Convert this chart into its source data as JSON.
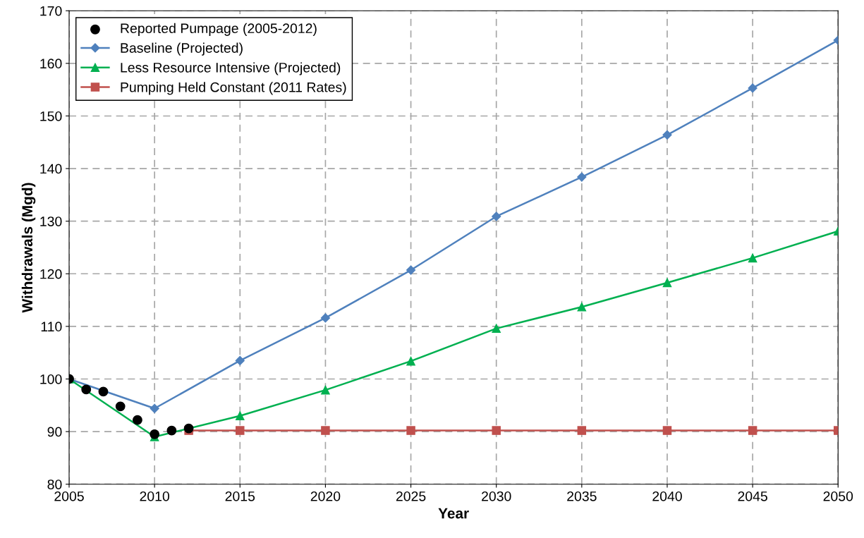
{
  "chart_data": {
    "type": "line",
    "xlabel": "Year",
    "ylabel": "Withdrawals (Mgd)",
    "xlim": [
      2005,
      2050
    ],
    "xticks": [
      2005,
      2010,
      2015,
      2020,
      2025,
      2030,
      2035,
      2040,
      2045,
      2050
    ],
    "ylim": [
      80,
      170
    ],
    "yticks": [
      80,
      90,
      100,
      110,
      120,
      130,
      140,
      150,
      160,
      170
    ],
    "grid": true,
    "legend": "top left",
    "series": [
      {
        "name": "Reported Pumpage (2005-2012)",
        "type": "scatter",
        "marker": "circle",
        "color": "#000000",
        "x": [
          2005,
          2006,
          2007,
          2008,
          2009,
          2010,
          2011,
          2012
        ],
        "values": [
          100.0,
          98.0,
          97.6,
          94.8,
          92.2,
          89.5,
          90.2,
          90.6
        ]
      },
      {
        "name": "Baseline (Projected)",
        "marker": "diamond",
        "color": "#4f81bd",
        "x": [
          2005,
          2010,
          2015,
          2020,
          2025,
          2030,
          2035,
          2040,
          2045,
          2050
        ],
        "values": [
          100.0,
          94.4,
          103.5,
          111.6,
          120.7,
          130.9,
          138.4,
          146.4,
          155.3,
          164.4
        ]
      },
      {
        "name": "Less Resource Intensive (Projected)",
        "marker": "triangle",
        "color": "#00b050",
        "x": [
          2005,
          2010,
          2015,
          2020,
          2025,
          2030,
          2035,
          2040,
          2045,
          2050
        ],
        "values": [
          100.0,
          89.0,
          93.0,
          97.9,
          103.4,
          109.6,
          113.7,
          118.3,
          123.0,
          128.1
        ]
      },
      {
        "name": "Pumping Held Constant (2011 Rates)",
        "marker": "square",
        "color": "#c0504d",
        "x": [
          2012,
          2015,
          2020,
          2025,
          2030,
          2035,
          2040,
          2045,
          2050
        ],
        "values": [
          90.2,
          90.2,
          90.2,
          90.2,
          90.2,
          90.2,
          90.2,
          90.2,
          90.2
        ]
      }
    ]
  }
}
